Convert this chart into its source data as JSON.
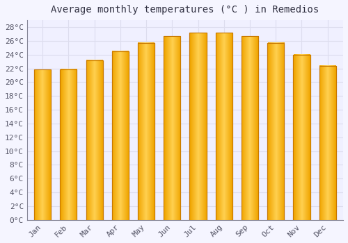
{
  "months": [
    "Jan",
    "Feb",
    "Mar",
    "Apr",
    "May",
    "Jun",
    "Jul",
    "Aug",
    "Sep",
    "Oct",
    "Nov",
    "Dec"
  ],
  "temperatures": [
    21.8,
    21.9,
    23.2,
    24.5,
    25.7,
    26.7,
    27.2,
    27.2,
    26.7,
    25.7,
    24.0,
    22.4
  ],
  "title": "Average monthly temperatures (°C ) in Remedios",
  "bar_color_left": "#F0A500",
  "bar_color_center": "#FFD050",
  "bar_color_right": "#F0A500",
  "bar_edge_color": "#C87800",
  "ylim": [
    0,
    29
  ],
  "ytick_step": 2,
  "background_color": "#f5f5ff",
  "plot_bg_color": "#f0f0ff",
  "grid_color": "#ddddee",
  "title_fontsize": 10,
  "tick_fontsize": 8,
  "bar_width": 0.65
}
